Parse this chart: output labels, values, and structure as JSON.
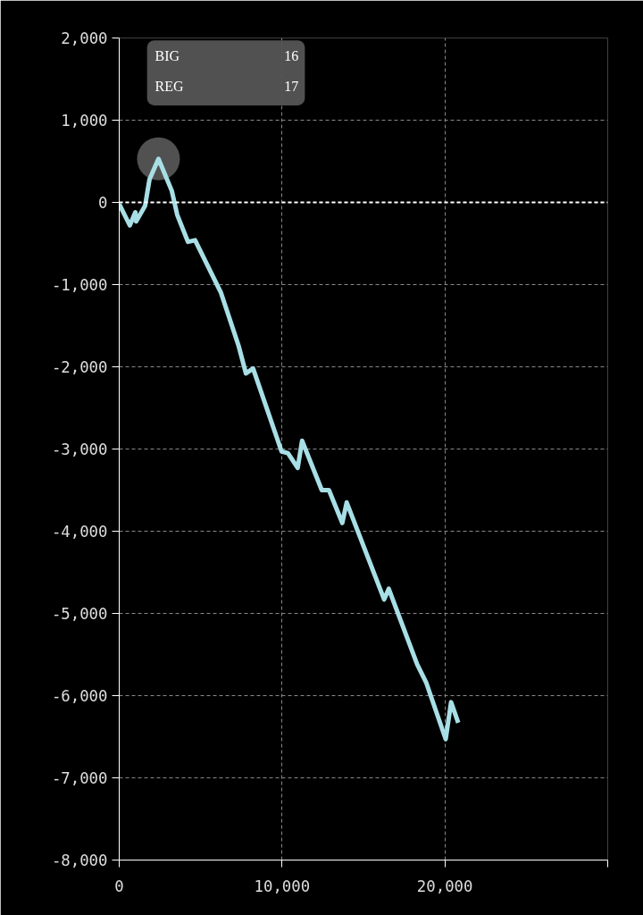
{
  "chart_data": {
    "type": "line",
    "x": [
      0,
      650,
      990,
      1040,
      1590,
      1860,
      2410,
      3230,
      3560,
      4220,
      4660,
      6250,
      7340,
      7780,
      8220,
      9970,
      10360,
      10960,
      11230,
      12440,
      12880,
      13700,
      13970,
      16270,
      16550,
      18300,
      18850,
      20050,
      20380,
      20820
    ],
    "series": [
      {
        "color": "#a8dfe6",
        "values": [
          -20,
          -280,
          -120,
          -230,
          -40,
          280,
          530,
          140,
          -150,
          -480,
          -460,
          -1100,
          -1750,
          -2080,
          -2020,
          -3030,
          -3050,
          -3230,
          -2900,
          -3500,
          -3500,
          -3900,
          -3650,
          -4830,
          -4700,
          -5620,
          -5840,
          -6530,
          -6080,
          -6330
        ]
      },
      {
        "type": "scatter",
        "marker": "circle",
        "color": "#5a5a5a",
        "x": [
          2410
        ],
        "values": [
          530
        ]
      }
    ],
    "xlim": [
      0,
      30000
    ],
    "ylim": [
      -8000,
      2000
    ],
    "xticks": [
      0,
      {
        "value": 10000,
        "label": "10,000"
      },
      {
        "value": 20000,
        "label": "20,000"
      },
      {
        "value": 30000,
        "label": null
      }
    ],
    "yticks": [
      {
        "value": 2000,
        "label": "2,000"
      },
      {
        "value": 1000,
        "label": "1,000"
      },
      0,
      {
        "value": -1000,
        "label": "-1,000"
      },
      {
        "value": -2000,
        "label": "-2,000"
      },
      {
        "value": -3000,
        "label": "-3,000"
      },
      {
        "value": -4000,
        "label": "-4,000"
      },
      {
        "value": -5000,
        "label": "-5,000"
      },
      {
        "value": -6000,
        "label": "-6,000"
      },
      {
        "value": -7000,
        "label": "-7,000"
      },
      {
        "value": -8000,
        "label": "-8,000"
      }
    ],
    "ref_lines": [
      {
        "axis": "y",
        "value": 0,
        "color": "#ffffff",
        "line_style": "dashed"
      }
    ],
    "annotations": [
      "BIG",
      "16",
      "REG",
      "17"
    ],
    "grid": true,
    "line_style": "solid"
  }
}
